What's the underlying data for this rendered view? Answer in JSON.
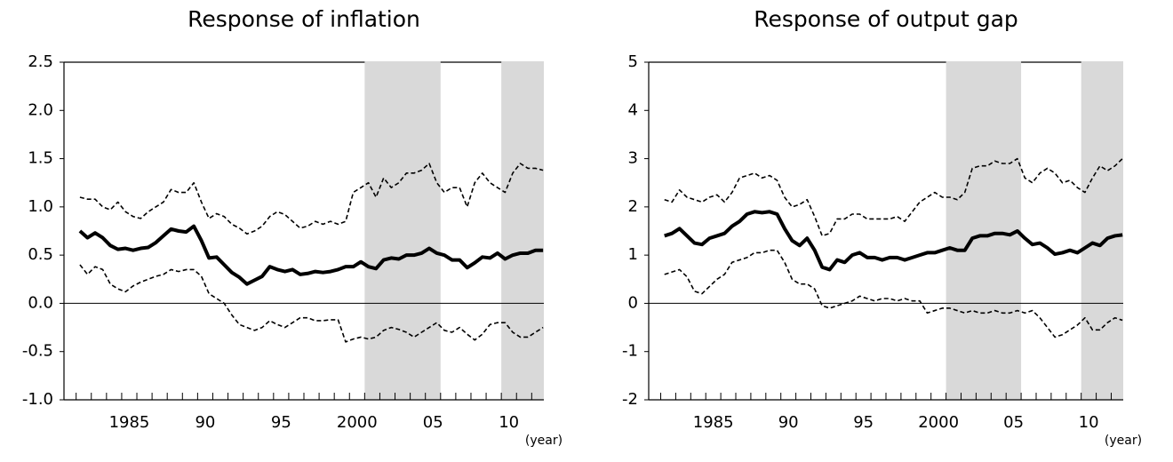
{
  "chart_data": [
    {
      "type": "line",
      "title": "Response of inflation",
      "xlabel": "(year)",
      "xlim": [
        1981.2,
        2012.8
      ],
      "ylim": [
        -1,
        2.5
      ],
      "xticks": [
        {
          "value": 1985.5,
          "label": "1985"
        },
        {
          "value": 1990.5,
          "label": "90"
        },
        {
          "value": 1995.5,
          "label": "95"
        },
        {
          "value": 2000.5,
          "label": "2000"
        },
        {
          "value": 2005.5,
          "label": "05"
        },
        {
          "value": 2010.5,
          "label": "10"
        }
      ],
      "xminorticks": [
        1982,
        1983,
        1984,
        1985,
        1986,
        1987,
        1988,
        1989,
        1990,
        1991,
        1992,
        1993,
        1994,
        1995,
        1996,
        1997,
        1998,
        1999,
        2000,
        2001,
        2002,
        2003,
        2004,
        2005,
        2006,
        2007,
        2008,
        2009,
        2010,
        2011,
        2012
      ],
      "yticks": [
        {
          "value": -1,
          "label": "-1.0"
        },
        -0.5,
        {
          "value": 0,
          "label": "0.0"
        },
        0.5,
        {
          "value": 1,
          "label": "1.0"
        },
        1.5,
        {
          "value": 2,
          "label": "2.0"
        },
        2.5
      ],
      "shaded": [
        [
          2001,
          2006
        ],
        [
          2010,
          2012.8
        ]
      ],
      "shade_color": "#d9d9d9",
      "x": [
        1982.25,
        1982.75,
        1983.25,
        1983.75,
        1984.25,
        1984.75,
        1985.25,
        1985.75,
        1986.25,
        1986.75,
        1987.25,
        1987.75,
        1988.25,
        1988.75,
        1989.25,
        1989.75,
        1990.25,
        1990.75,
        1991.25,
        1991.75,
        1992.25,
        1992.75,
        1993.25,
        1993.75,
        1994.25,
        1994.75,
        1995.25,
        1995.75,
        1996.25,
        1996.75,
        1997.25,
        1997.75,
        1998.25,
        1998.75,
        1999.25,
        1999.75,
        2000.25,
        2000.75,
        2001.25,
        2001.75,
        2002.25,
        2002.75,
        2003.25,
        2003.75,
        2004.25,
        2004.75,
        2005.25,
        2005.75,
        2006.25,
        2006.75,
        2007.25,
        2007.75,
        2008.25,
        2008.75,
        2009.25,
        2009.75,
        2010.25,
        2010.75,
        2011.25,
        2011.75,
        2012.25,
        2012.75
      ],
      "series": [
        {
          "color": "#000000",
          "style": "dashed",
          "values": [
            1.1,
            1.08,
            1.08,
            1.0,
            0.97,
            1.05,
            0.95,
            0.9,
            0.88,
            0.95,
            1.0,
            1.05,
            1.18,
            1.15,
            1.15,
            1.25,
            1.05,
            0.88,
            0.93,
            0.9,
            0.82,
            0.78,
            0.72,
            0.75,
            0.8,
            0.9,
            0.95,
            0.92,
            0.85,
            0.78,
            0.8,
            0.85,
            0.82,
            0.85,
            0.82,
            0.85,
            1.15,
            1.2,
            1.25,
            1.1,
            1.3,
            1.2,
            1.25,
            1.35,
            1.35,
            1.38,
            1.45,
            1.25,
            1.15,
            1.2,
            1.2,
            1.0,
            1.25,
            1.35,
            1.25,
            1.2,
            1.15,
            1.35,
            1.45,
            1.4,
            1.4,
            1.38
          ]
        },
        {
          "color": "#000000",
          "style": "solid",
          "values": [
            0.75,
            0.68,
            0.73,
            0.68,
            0.6,
            0.56,
            0.57,
            0.55,
            0.57,
            0.58,
            0.63,
            0.7,
            0.77,
            0.75,
            0.74,
            0.8,
            0.65,
            0.47,
            0.48,
            0.4,
            0.32,
            0.27,
            0.2,
            0.24,
            0.28,
            0.38,
            0.35,
            0.33,
            0.35,
            0.3,
            0.31,
            0.33,
            0.32,
            0.33,
            0.35,
            0.38,
            0.38,
            0.43,
            0.38,
            0.36,
            0.45,
            0.47,
            0.46,
            0.5,
            0.5,
            0.52,
            0.57,
            0.52,
            0.5,
            0.45,
            0.45,
            0.37,
            0.42,
            0.48,
            0.47,
            0.52,
            0.46,
            0.5,
            0.52,
            0.52,
            0.55,
            0.55
          ]
        },
        {
          "color": "#000000",
          "style": "dashed",
          "values": [
            0.4,
            0.3,
            0.38,
            0.35,
            0.2,
            0.15,
            0.12,
            0.18,
            0.22,
            0.25,
            0.28,
            0.3,
            0.35,
            0.33,
            0.35,
            0.35,
            0.28,
            0.1,
            0.05,
            0.0,
            -0.12,
            -0.22,
            -0.25,
            -0.28,
            -0.25,
            -0.18,
            -0.22,
            -0.25,
            -0.2,
            -0.15,
            -0.15,
            -0.18,
            -0.18,
            -0.17,
            -0.17,
            -0.4,
            -0.37,
            -0.35,
            -0.37,
            -0.35,
            -0.28,
            -0.25,
            -0.27,
            -0.3,
            -0.35,
            -0.3,
            -0.25,
            -0.2,
            -0.28,
            -0.3,
            -0.25,
            -0.32,
            -0.38,
            -0.32,
            -0.22,
            -0.2,
            -0.2,
            -0.3,
            -0.35,
            -0.35,
            -0.3,
            -0.25
          ]
        }
      ]
    },
    {
      "type": "line",
      "title": "Response of output gap",
      "xlabel": "(year)",
      "xlim": [
        1981.2,
        2012.8
      ],
      "ylim": [
        -2,
        5
      ],
      "xticks": [
        {
          "value": 1985.5,
          "label": "1985"
        },
        {
          "value": 1990.5,
          "label": "90"
        },
        {
          "value": 1995.5,
          "label": "95"
        },
        {
          "value": 2000.5,
          "label": "2000"
        },
        {
          "value": 2005.5,
          "label": "05"
        },
        {
          "value": 2010.5,
          "label": "10"
        }
      ],
      "xminorticks": [
        1982,
        1983,
        1984,
        1985,
        1986,
        1987,
        1988,
        1989,
        1990,
        1991,
        1992,
        1993,
        1994,
        1995,
        1996,
        1997,
        1998,
        1999,
        2000,
        2001,
        2002,
        2003,
        2004,
        2005,
        2006,
        2007,
        2008,
        2009,
        2010,
        2011,
        2012
      ],
      "yticks": [
        -2,
        -1,
        0,
        1,
        2,
        3,
        4,
        5
      ],
      "shaded": [
        [
          2001,
          2006
        ],
        [
          2010,
          2012.8
        ]
      ],
      "shade_color": "#d9d9d9",
      "x": [
        1982.25,
        1982.75,
        1983.25,
        1983.75,
        1984.25,
        1984.75,
        1985.25,
        1985.75,
        1986.25,
        1986.75,
        1987.25,
        1987.75,
        1988.25,
        1988.75,
        1989.25,
        1989.75,
        1990.25,
        1990.75,
        1991.25,
        1991.75,
        1992.25,
        1992.75,
        1993.25,
        1993.75,
        1994.25,
        1994.75,
        1995.25,
        1995.75,
        1996.25,
        1996.75,
        1997.25,
        1997.75,
        1998.25,
        1998.75,
        1999.25,
        1999.75,
        2000.25,
        2000.75,
        2001.25,
        2001.75,
        2002.25,
        2002.75,
        2003.25,
        2003.75,
        2004.25,
        2004.75,
        2005.25,
        2005.75,
        2006.25,
        2006.75,
        2007.25,
        2007.75,
        2008.25,
        2008.75,
        2009.25,
        2009.75,
        2010.25,
        2010.75,
        2011.25,
        2011.75,
        2012.25,
        2012.75
      ],
      "series": [
        {
          "color": "#000000",
          "style": "dashed",
          "values": [
            2.15,
            2.1,
            2.35,
            2.2,
            2.15,
            2.1,
            2.2,
            2.25,
            2.1,
            2.3,
            2.6,
            2.65,
            2.7,
            2.6,
            2.65,
            2.55,
            2.2,
            2.0,
            2.05,
            2.15,
            1.8,
            1.4,
            1.45,
            1.75,
            1.75,
            1.85,
            1.85,
            1.75,
            1.75,
            1.75,
            1.75,
            1.8,
            1.7,
            1.9,
            2.1,
            2.2,
            2.3,
            2.2,
            2.2,
            2.15,
            2.3,
            2.8,
            2.85,
            2.85,
            2.95,
            2.9,
            2.9,
            3.0,
            2.6,
            2.5,
            2.7,
            2.8,
            2.7,
            2.5,
            2.55,
            2.4,
            2.3,
            2.6,
            2.85,
            2.75,
            2.85,
            3.0
          ]
        },
        {
          "color": "#000000",
          "style": "solid",
          "values": [
            1.4,
            1.45,
            1.55,
            1.4,
            1.25,
            1.22,
            1.35,
            1.4,
            1.45,
            1.6,
            1.7,
            1.85,
            1.9,
            1.88,
            1.9,
            1.85,
            1.55,
            1.3,
            1.2,
            1.35,
            1.1,
            0.75,
            0.7,
            0.9,
            0.85,
            1.0,
            1.05,
            0.95,
            0.95,
            0.9,
            0.95,
            0.95,
            0.9,
            0.95,
            1.0,
            1.05,
            1.05,
            1.1,
            1.15,
            1.1,
            1.1,
            1.35,
            1.4,
            1.4,
            1.45,
            1.45,
            1.42,
            1.5,
            1.35,
            1.22,
            1.25,
            1.15,
            1.02,
            1.05,
            1.1,
            1.05,
            1.15,
            1.25,
            1.2,
            1.35,
            1.4,
            1.42
          ]
        },
        {
          "color": "#000000",
          "style": "dashed",
          "values": [
            0.6,
            0.65,
            0.7,
            0.55,
            0.25,
            0.2,
            0.35,
            0.5,
            0.6,
            0.85,
            0.9,
            0.95,
            1.05,
            1.05,
            1.1,
            1.1,
            0.85,
            0.5,
            0.4,
            0.4,
            0.3,
            -0.05,
            -0.1,
            -0.05,
            0.0,
            0.05,
            0.15,
            0.1,
            0.05,
            0.1,
            0.1,
            0.05,
            0.1,
            0.05,
            0.05,
            -0.2,
            -0.15,
            -0.1,
            -0.1,
            -0.15,
            -0.2,
            -0.15,
            -0.2,
            -0.2,
            -0.15,
            -0.2,
            -0.2,
            -0.15,
            -0.2,
            -0.15,
            -0.3,
            -0.5,
            -0.7,
            -0.65,
            -0.55,
            -0.45,
            -0.3,
            -0.55,
            -0.55,
            -0.4,
            -0.3,
            -0.35
          ]
        }
      ]
    }
  ]
}
